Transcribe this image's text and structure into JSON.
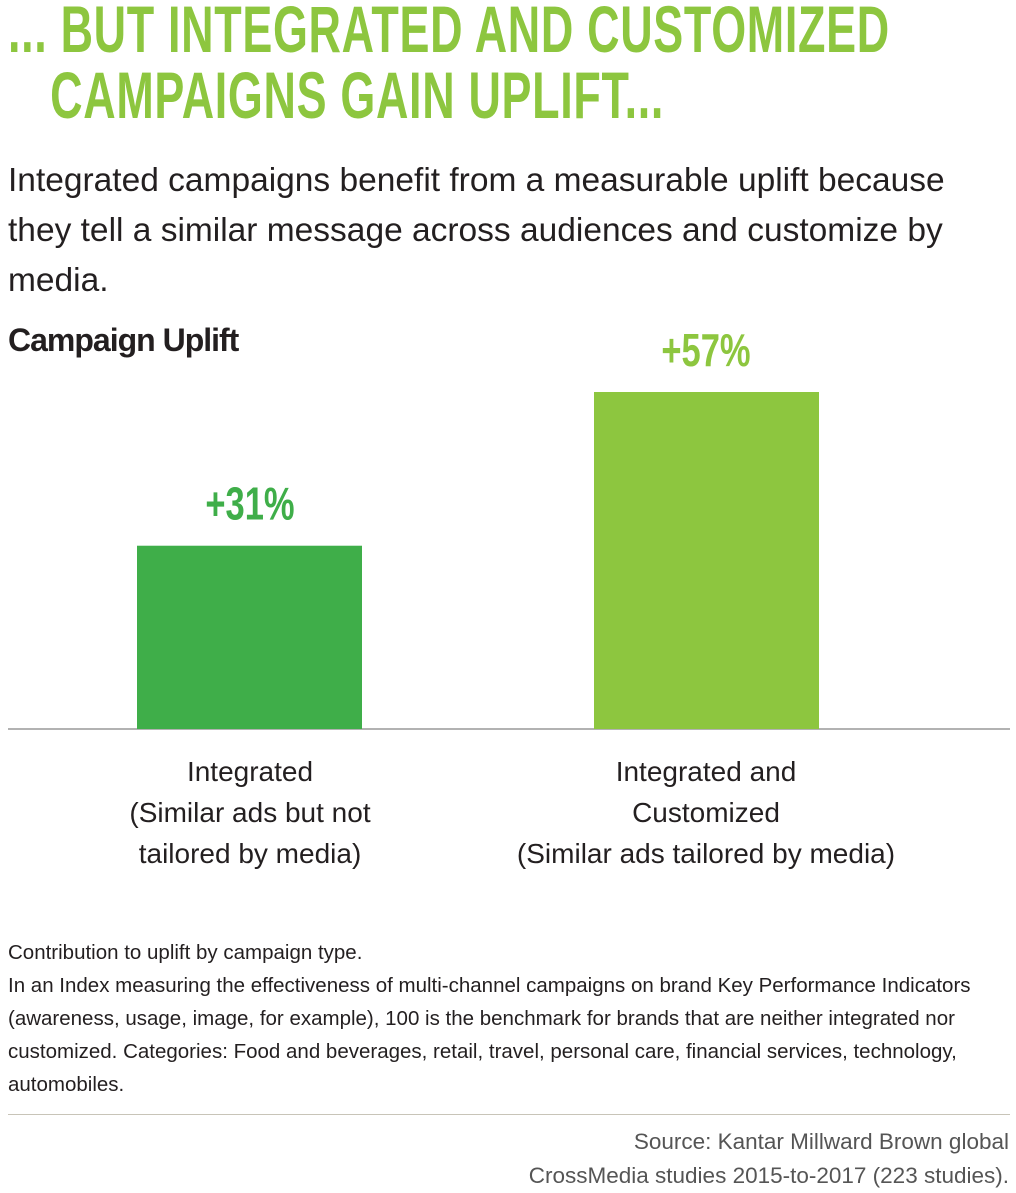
{
  "header": {
    "title_line1": "... BUT INTEGRATED AND CUSTOMIZED",
    "title_line2": "CAMPAIGNS GAIN UPLIFT...",
    "subtitle": "Integrated campaigns benefit from a measurable uplift because they tell a similar message across audiences and customize by media."
  },
  "chart_data": {
    "type": "bar",
    "title": "Campaign Uplift",
    "categories": [
      [
        "Integrated",
        "(Similar ads but not",
        "tailored by media)"
      ],
      [
        "Integrated and",
        "Customized",
        "(Similar ads tailored by media)"
      ]
    ],
    "values": [
      31,
      57
    ],
    "data_labels": [
      "+31%",
      "+57%"
    ],
    "colors": [
      "#3fae49",
      "#8dc63f"
    ],
    "ylim": [
      0,
      57
    ],
    "unit": "%",
    "xlabel": "",
    "ylabel": "",
    "grid": false
  },
  "footnote": {
    "line1": "Contribution to uplift by campaign type.",
    "body": "In an Index measuring the effectiveness of multi-channel campaigns on brand Key Performance Indicators (awareness, usage, image, for example), 100 is the benchmark for brands that are neither integrated nor customized. Categories: Food and beverages, retail, travel, personal care, financial services, technology, automobiles."
  },
  "source": {
    "line1": "Source: Kantar Millward Brown global",
    "line2": "CrossMedia studies 2015-to-2017 (223 studies)."
  }
}
